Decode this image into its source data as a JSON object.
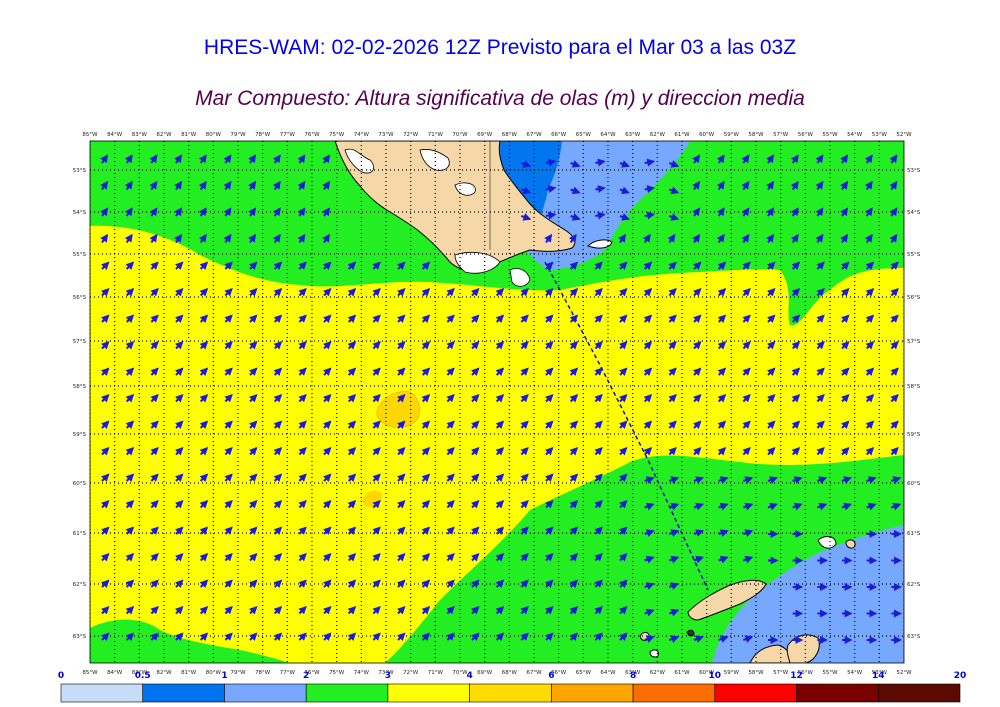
{
  "title": "HRES-WAM: 02-02-2026 12Z Previsto para el Mar 03 a las 03Z",
  "subtitle": "Mar Compuesto: Altura significativa de olas (m) y direccion media",
  "map": {
    "lon_labels": [
      "85°W",
      "84°W",
      "83°W",
      "82°W",
      "81°W",
      "80°W",
      "79°W",
      "78°W",
      "77°W",
      "76°W",
      "75°W",
      "74°W",
      "73°W",
      "72°W",
      "71°W",
      "70°W",
      "69°W",
      "68°W",
      "67°W",
      "66°W",
      "65°W",
      "64°W",
      "63°W",
      "62°W",
      "61°W",
      "60°W",
      "59°W",
      "58°W",
      "57°W",
      "56°W",
      "55°W",
      "54°W",
      "53°W",
      "52°W"
    ],
    "lat_labels": [
      "53°S",
      "54°S",
      "55°S",
      "56°S",
      "57°S",
      "58°S",
      "59°S",
      "60°S",
      "61°S",
      "62°S",
      "63°S"
    ],
    "colors": {
      "sea_green": "#22ee22",
      "sea_yellow": "#ffff00",
      "sea_gold": "#ffd700",
      "sea_blue_light": "#77a8ff",
      "sea_blue": "#0077ee",
      "land": "#f5d7a8",
      "arrow": "#1c1cd8",
      "track": "#1010c0"
    }
  },
  "colorbar": {
    "labels": [
      "0",
      "0.5",
      "1",
      "2",
      "3",
      "4",
      "6",
      "8",
      "10",
      "12",
      "14",
      "20"
    ],
    "colors": [
      "#c6dcf8",
      "#0073ee",
      "#78a7ff",
      "#22ee22",
      "#ffff00",
      "#ffdb00",
      "#ffa500",
      "#ff6c00",
      "#ff0000",
      "#7a0000",
      "#5c0a00",
      "#333333"
    ]
  }
}
